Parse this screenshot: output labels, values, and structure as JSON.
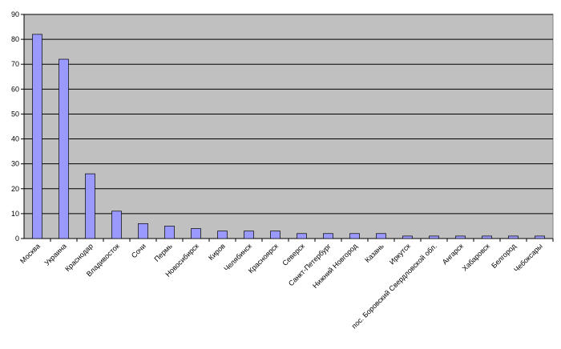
{
  "chart_data": {
    "type": "bar",
    "categories": [
      "Москва",
      "Украина",
      "Краснодар",
      "Владивосток",
      "Сочи",
      "Пермь",
      "Новосибирск",
      "Киров",
      "Челябинск",
      "Красноярск",
      "Северск",
      "Санкт-Петербург",
      "Нижний Новгород",
      "Казань",
      "Иркутск",
      "пос. Боровский Свердловской обл.",
      "Ангарск",
      "Хабаровск",
      "Белгород",
      "Чебоксары"
    ],
    "values": [
      82,
      72,
      26,
      11,
      6,
      5,
      4,
      3,
      3,
      3,
      2,
      2,
      2,
      2,
      1,
      1,
      1,
      1,
      1,
      1
    ],
    "color": "#9999ff",
    "ylim": [
      0,
      90
    ],
    "yticks": [
      0,
      10,
      20,
      30,
      40,
      50,
      60,
      70,
      80,
      90
    ],
    "grid": true
  }
}
